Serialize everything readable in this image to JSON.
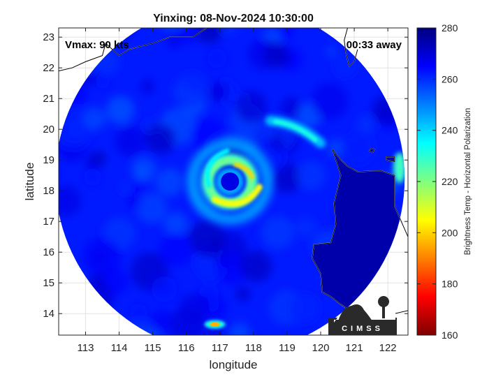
{
  "chart_data": {
    "type": "heatmap",
    "title": "Yinxing: 08-Nov-2024 10:30:00",
    "xlabel": "longitude",
    "ylabel": "latitude",
    "xlim": [
      112.2,
      122.6
    ],
    "ylim": [
      13.3,
      23.3
    ],
    "x_ticks": [
      113,
      114,
      115,
      116,
      117,
      118,
      119,
      120,
      121,
      122
    ],
    "y_ticks": [
      14,
      15,
      16,
      17,
      18,
      19,
      20,
      21,
      22,
      23
    ],
    "annotations": {
      "vmax": "Vmax: 90 kts",
      "time_offset": "00:33 away"
    },
    "colorbar": {
      "label": "Brightness Temp - Horizontal Polarization",
      "range": [
        160,
        280
      ],
      "ticks": [
        160,
        180,
        200,
        220,
        240,
        260,
        280
      ],
      "colormap": [
        "#7f0000",
        "#ff0000",
        "#ff8000",
        "#ffff00",
        "#80ff80",
        "#00ffff",
        "#0080ff",
        "#0000ff",
        "#00007f"
      ]
    },
    "swath": {
      "center_lon": 117.3,
      "center_lat": 18.4,
      "background_tb": 262
    },
    "storm": {
      "eye_lon": 117.3,
      "eye_lat": 18.3,
      "eye_tb": 268,
      "eyewall_tb": 222,
      "eyewall_min_tb": 200,
      "outer_band_tb": 242
    },
    "coastlines": [
      {
        "name": "luzon",
        "points": [
          [
            120.35,
            19.35
          ],
          [
            120.6,
            18.5
          ],
          [
            120.4,
            17.6
          ],
          [
            120.45,
            16.9
          ],
          [
            120.3,
            16.3
          ],
          [
            119.8,
            16.25
          ],
          [
            119.75,
            15.8
          ],
          [
            120.0,
            15.3
          ],
          [
            120.05,
            14.7
          ],
          [
            120.3,
            14.55
          ],
          [
            120.6,
            14.3
          ],
          [
            121.0,
            14.0
          ],
          [
            121.5,
            13.8
          ],
          [
            122.2,
            14.0
          ],
          [
            122.6,
            14.1
          ],
          [
            122.6,
            16.5
          ],
          [
            122.2,
            17.5
          ],
          [
            122.2,
            18.5
          ],
          [
            121.8,
            18.65
          ],
          [
            121.1,
            18.62
          ],
          [
            120.8,
            18.8
          ],
          [
            120.6,
            19.0
          ]
        ]
      },
      {
        "name": "babuyan",
        "points": [
          [
            121.95,
            19.0
          ],
          [
            122.2,
            18.95
          ],
          [
            122.2,
            19.1
          ],
          [
            121.95,
            19.1
          ]
        ]
      },
      {
        "name": "calayan",
        "points": [
          [
            121.45,
            19.3
          ],
          [
            121.55,
            19.25
          ],
          [
            121.6,
            19.35
          ],
          [
            121.5,
            19.38
          ]
        ]
      },
      {
        "name": "china_coast",
        "points": [
          [
            112.2,
            21.9
          ],
          [
            112.6,
            22.0
          ],
          [
            113.0,
            22.2
          ],
          [
            113.5,
            22.4
          ],
          [
            113.6,
            22.8
          ],
          [
            114.0,
            22.4
          ],
          [
            114.3,
            22.6
          ],
          [
            114.6,
            22.7
          ],
          [
            115.0,
            22.8
          ],
          [
            115.5,
            23.0
          ],
          [
            116.2,
            23.0
          ],
          [
            116.6,
            23.3
          ]
        ]
      },
      {
        "name": "taiwan",
        "points": [
          [
            120.8,
            23.3
          ],
          [
            120.7,
            22.9
          ],
          [
            120.75,
            22.5
          ],
          [
            120.85,
            22.05
          ],
          [
            121.0,
            22.2
          ],
          [
            121.1,
            22.6
          ]
        ]
      }
    ],
    "logo": {
      "text": "CIMSS"
    }
  }
}
